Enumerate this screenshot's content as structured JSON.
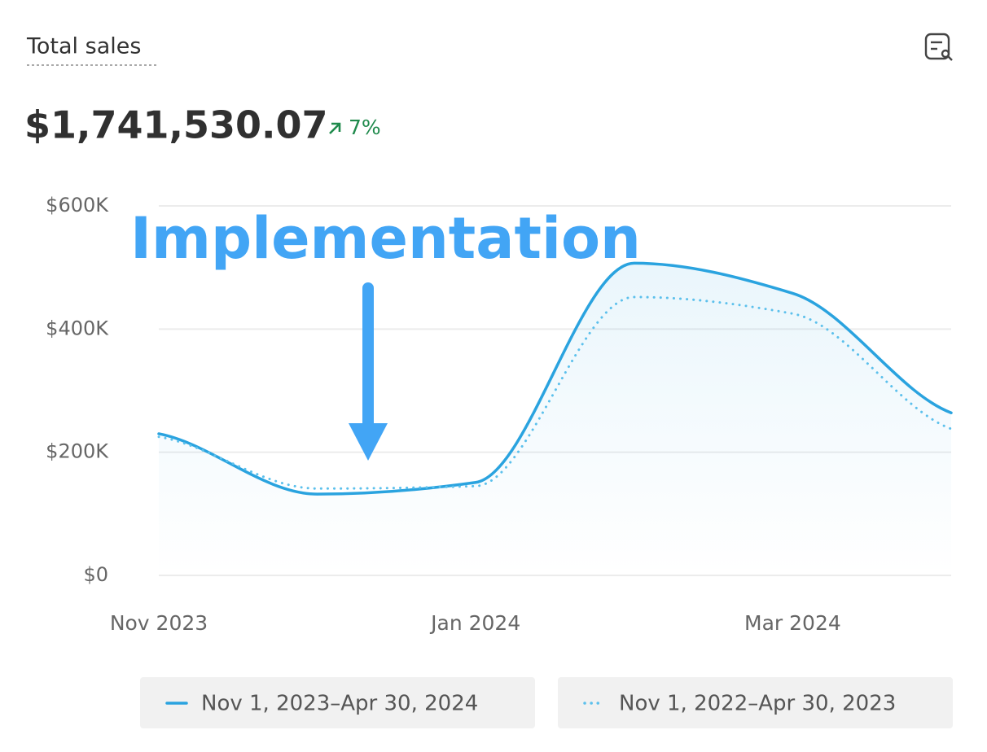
{
  "header": {
    "title": "Total sales",
    "total": "$1,741,530.07",
    "change": "7%"
  },
  "chart_data": {
    "type": "line",
    "annotation": "Implementation",
    "categories": [
      "Nov 2023",
      null,
      "Jan 2024",
      null,
      "Mar 2024",
      null
    ],
    "series": [
      {
        "name": "Nov 1, 2023–Apr 30, 2024",
        "color": "#2aa3df",
        "dash": "solid",
        "values": [
          230000,
          132000,
          151000,
          507000,
          458000,
          264000
        ]
      },
      {
        "name": "Nov 1, 2022–Apr 30, 2023",
        "color": "#5cc0ec",
        "dash": "dotted",
        "values": [
          225000,
          141000,
          145000,
          452000,
          425000,
          238000
        ]
      }
    ],
    "ylim": [
      0,
      600000
    ],
    "yticks": [
      {
        "value": 0,
        "label": "$0"
      },
      {
        "value": 200000,
        "label": "$200K"
      },
      {
        "value": 400000,
        "label": "$400K"
      },
      {
        "value": 600000,
        "label": "$600K"
      }
    ],
    "grid": true
  }
}
